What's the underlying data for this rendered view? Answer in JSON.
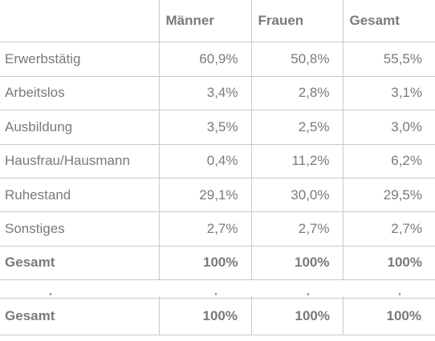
{
  "table": {
    "headers": [
      "",
      "Männer",
      "Frauen",
      "Gesamt"
    ],
    "rows": [
      {
        "label": "Erwerbstätig",
        "values": [
          "60,9%",
          "50,8%",
          "55,5%"
        ]
      },
      {
        "label": "Arbeitslos",
        "values": [
          "3,4%",
          "2,8%",
          "3,1%"
        ]
      },
      {
        "label": "Ausbildung",
        "values": [
          "3,5%",
          "2,5%",
          "3,0%"
        ]
      },
      {
        "label": "Hausfrau/Hausmann",
        "values": [
          "0,4%",
          "11,2%",
          "6,2%"
        ]
      },
      {
        "label": "Ruhestand",
        "values": [
          "29,1%",
          "30,0%",
          "29,5%"
        ]
      },
      {
        "label": "Sonstiges",
        "values": [
          "2,7%",
          "2,7%",
          "2,7%"
        ]
      }
    ],
    "total": {
      "label": "Gesamt",
      "values": [
        "100%",
        "100%",
        "100%"
      ]
    }
  },
  "fragment": {
    "total": {
      "label": "Gesamt",
      "values": [
        "100%",
        "100%",
        "100%"
      ]
    }
  }
}
